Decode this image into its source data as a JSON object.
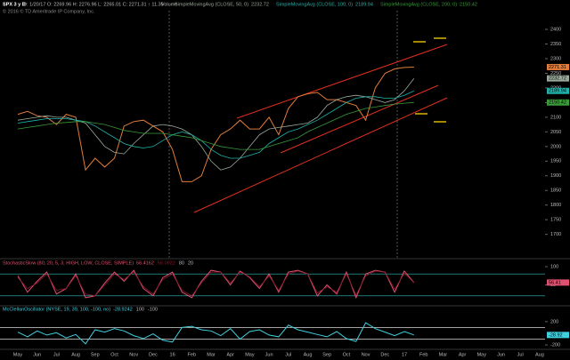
{
  "chart_data": [
    {
      "type": "line",
      "title": "SPX 3 y D",
      "quote": "D: 1/20/17  O: 2269.96  H: 2276.96  L: 2265.01  C: 2271.31  ↑ 11.35",
      "volume_label": "Volume",
      "copyright": "© 2016 © TD Ameritrade IP Company, Inc.",
      "categories": [
        "May",
        null,
        "Jun",
        null,
        "Jul",
        null,
        "Aug",
        null,
        "Sep",
        null,
        "Oct",
        null,
        "Nov",
        null,
        "Dec",
        null,
        "16",
        null,
        "Feb",
        null,
        "Mar",
        null,
        "Apr",
        null,
        "May",
        null,
        "Jun",
        null,
        "Jul",
        null,
        "Aug",
        null,
        "Sep",
        null,
        "Oct",
        null,
        "Nov",
        null,
        "Dec",
        null,
        "17",
        null,
        "Feb",
        null,
        "Mar",
        null,
        "Apr",
        null,
        "May",
        null,
        "Jun",
        null,
        "Jul",
        null,
        "Aug",
        null
      ],
      "ylim": [
        1620,
        2470
      ],
      "yticks": [
        1700,
        1750,
        1800,
        1850,
        1900,
        1950,
        2000,
        2050,
        2100,
        2150,
        2200,
        2250,
        2300,
        2350,
        2400
      ],
      "series": [
        {
          "name": "SPX",
          "color": "#e07b39",
          "values": [
            2110,
            2120,
            2105,
            2100,
            2075,
            2110,
            2100,
            1920,
            1960,
            1930,
            1960,
            2070,
            2085,
            2090,
            2070,
            2050,
            1990,
            1880,
            1880,
            1900,
            1990,
            2040,
            2060,
            2090,
            2060,
            2060,
            2100,
            2040,
            2130,
            2170,
            2180,
            2185,
            2160,
            2160,
            2150,
            2140,
            2090,
            2200,
            2250,
            2265,
            2270,
            2271.31,
            null,
            null,
            null,
            null,
            null,
            null,
            null,
            null,
            null,
            null,
            null,
            null,
            null,
            null
          ]
        },
        {
          "name": "SimpleMovingAvg (CLOSE, 50, 0)",
          "color": "#9aa89a",
          "values": [
            2090,
            2095,
            2100,
            2105,
            2100,
            2100,
            2090,
            2080,
            2040,
            2000,
            1980,
            1975,
            2010,
            2040,
            2070,
            2075,
            2070,
            2060,
            2040,
            2000,
            1950,
            1920,
            1930,
            1960,
            2000,
            2040,
            2060,
            2065,
            2070,
            2075,
            2080,
            2100,
            2140,
            2160,
            2170,
            2175,
            2170,
            2160,
            2150,
            2160,
            2190,
            2232.72,
            null,
            null,
            null,
            null,
            null,
            null,
            null,
            null,
            null,
            null,
            null,
            null,
            null,
            null
          ]
        },
        {
          "name": "SimpleMovingAvg (CLOSE, 100, 0)",
          "color": "#20b2aa",
          "values": [
            2080,
            2085,
            2090,
            2095,
            2095,
            2095,
            2090,
            2085,
            2070,
            2050,
            2030,
            2010,
            2000,
            1995,
            2000,
            2020,
            2040,
            2050,
            2040,
            2020,
            1990,
            1970,
            1960,
            1960,
            1970,
            1980,
            2010,
            2030,
            2050,
            2060,
            2075,
            2090,
            2110,
            2130,
            2150,
            2165,
            2170,
            2170,
            2165,
            2165,
            2175,
            2189.94,
            null,
            null,
            null,
            null,
            null,
            null,
            null,
            null,
            null,
            null,
            null,
            null,
            null,
            null
          ]
        },
        {
          "name": "SimpleMovingAvg (CLOSE, 200, 0)",
          "color": "#3a9a3a",
          "values": [
            2060,
            2065,
            2070,
            2075,
            2080,
            2082,
            2085,
            2085,
            2080,
            2075,
            2065,
            2055,
            2050,
            2045,
            2045,
            2045,
            2040,
            2035,
            2030,
            2020,
            2010,
            2000,
            1995,
            1990,
            1990,
            1990,
            2000,
            2010,
            2020,
            2030,
            2050,
            2065,
            2080,
            2095,
            2110,
            2120,
            2130,
            2135,
            2140,
            2145,
            2148,
            2150.42,
            null,
            null,
            null,
            null,
            null,
            null,
            null,
            null,
            null,
            null,
            null,
            null,
            null,
            null
          ]
        }
      ]
    },
    {
      "type": "line",
      "title": "StochasticSlow (80, 20, 5, 3, HIGH, LOW, CLOSE, SIMPLE)",
      "ylim": [
        0,
        100
      ],
      "yticks": [
        50,
        100
      ],
      "levels": [
        80,
        20
      ],
      "level_color": "#30c0c0",
      "last_label": "56.41",
      "series": [
        {
          "name": "SlowK",
          "color": "#e05070",
          "values": [
            75,
            30,
            60,
            85,
            25,
            40,
            80,
            15,
            20,
            55,
            85,
            60,
            90,
            40,
            20,
            70,
            85,
            30,
            15,
            60,
            90,
            85,
            50,
            88,
            70,
            40,
            80,
            30,
            85,
            90,
            80,
            20,
            50,
            25,
            85,
            15,
            80,
            90,
            85,
            30,
            88,
            56.4162,
            null,
            null,
            null,
            null,
            null,
            null,
            null,
            null,
            null,
            null,
            null,
            null,
            null,
            null
          ]
        },
        {
          "name": "SlowD",
          "color": "#8b1a2a",
          "values": [
            70,
            40,
            55,
            80,
            35,
            40,
            75,
            25,
            20,
            50,
            80,
            65,
            85,
            45,
            25,
            65,
            80,
            35,
            20,
            55,
            85,
            85,
            55,
            85,
            72,
            45,
            75,
            35,
            80,
            88,
            80,
            28,
            45,
            30,
            80,
            22,
            75,
            88,
            85,
            38,
            82,
            56.0922,
            null,
            null,
            null,
            null,
            null,
            null,
            null,
            null,
            null,
            null,
            null,
            null,
            null,
            null
          ]
        }
      ]
    },
    {
      "type": "line",
      "title": "McClellanOscillator (NYSE, 19, 39, 100, -100, no)",
      "ylim": [
        -260,
        350
      ],
      "yticks": [
        -200,
        200
      ],
      "levels": [
        100,
        -100
      ],
      "level_color": "#d8d8d8",
      "last_label": "-28.92",
      "series": [
        {
          "name": "McClellanOsc",
          "color": "#40d0e0",
          "values": [
            20,
            -60,
            40,
            -30,
            10,
            -80,
            -20,
            -180,
            60,
            20,
            80,
            40,
            -40,
            -90,
            -10,
            -120,
            -150,
            100,
            120,
            60,
            40,
            -40,
            80,
            -100,
            30,
            60,
            -30,
            -60,
            140,
            60,
            20,
            -20,
            -60,
            30,
            -90,
            -140,
            180,
            80,
            20,
            -40,
            30,
            -28.9242,
            null,
            null,
            null,
            null,
            null,
            null,
            null,
            null,
            null,
            null,
            null,
            null,
            null,
            null
          ]
        }
      ]
    }
  ]
}
